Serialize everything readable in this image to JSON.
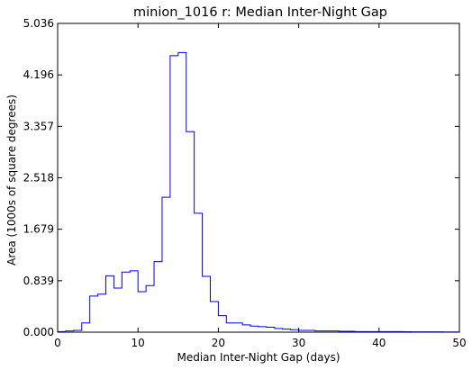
{
  "chart_data": {
    "type": "histogram",
    "title": "minion_1016  r: Median Inter-Night Gap",
    "xlabel": "Median Inter-Night Gap (days)",
    "ylabel": "Area (1000s of square degrees)",
    "xlim": [
      0,
      50
    ],
    "ylim": [
      0,
      5.036
    ],
    "xticks": [
      0,
      10,
      20,
      30,
      40,
      50
    ],
    "xtick_labels": [
      "0",
      "10",
      "20",
      "30",
      "40",
      "50"
    ],
    "yticks": [
      0,
      0.839,
      1.679,
      2.518,
      3.357,
      4.196,
      5.036
    ],
    "ytick_labels": [
      "0.000",
      "0.839",
      "1.679",
      "2.518",
      "3.357",
      "4.196",
      "5.036"
    ],
    "line_color": "#0000ff",
    "grid": false,
    "bin_edges": [
      0,
      1,
      2,
      3,
      4,
      5,
      6,
      7,
      8,
      9,
      10,
      11,
      12,
      13,
      14,
      15,
      16,
      17,
      18,
      19,
      20,
      21,
      22,
      23,
      24,
      25,
      26,
      27,
      28,
      29,
      30,
      31,
      32,
      33,
      34,
      35,
      36,
      37,
      38,
      39,
      40,
      41,
      42,
      43,
      44,
      45,
      46,
      47,
      48,
      49,
      50
    ],
    "values": [
      0.01,
      0.02,
      0.03,
      0.15,
      0.59,
      0.62,
      0.92,
      0.72,
      0.98,
      1.0,
      0.66,
      0.76,
      1.15,
      2.2,
      4.51,
      4.56,
      3.27,
      1.94,
      0.91,
      0.5,
      0.27,
      0.15,
      0.15,
      0.12,
      0.1,
      0.09,
      0.08,
      0.06,
      0.05,
      0.04,
      0.03,
      0.03,
      0.02,
      0.02,
      0.02,
      0.015,
      0.015,
      0.01,
      0.01,
      0.01,
      0.01,
      0.01,
      0.01,
      0.008,
      0.006,
      0.006,
      0.005,
      0.005,
      0.004,
      0.003
    ]
  }
}
